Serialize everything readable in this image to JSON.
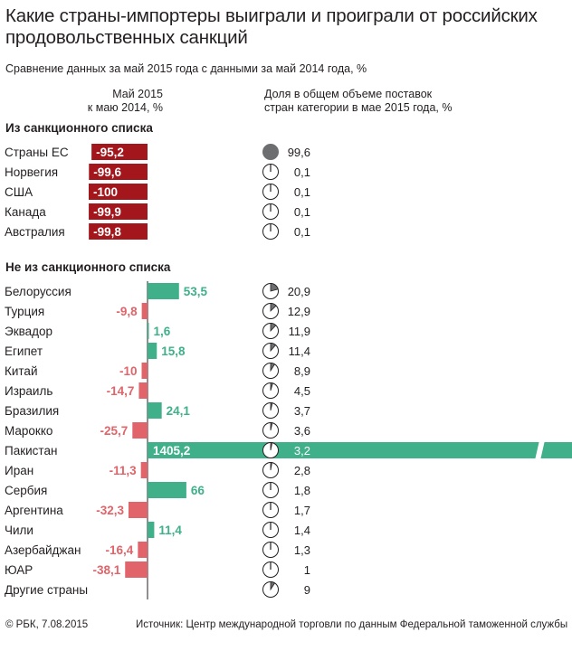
{
  "title": "Какие страны-импортеры выиграли и проиграли от российских продовольственных санкций",
  "subtitle": "Сравнение данных за май 2015 года с данными за май 2014 года, %",
  "footer": {
    "copyright": "© РБК, 7.08.2015",
    "source": "Источник: Центр международной торговли по данным Федеральной таможенной службы"
  },
  "colors": {
    "sanctioned_bar": "#a3161b",
    "positive": "#3fb08a",
    "negative": "#e0646a",
    "pie_fill": "#6d6e70",
    "text": "#231f20"
  },
  "chart_data": {
    "type": "bar",
    "column_headers": {
      "change": "Май 2015\nк маю 2014, %",
      "share": "Доля в общем объеме поставок\nстран категории в мае 2015 года, %"
    },
    "groups": [
      {
        "name": "Из санкционного списка",
        "rows": [
          {
            "country": "Страны ЕС",
            "change": -95.2,
            "change_label": "-95,2",
            "share": 99.6,
            "share_label": "99,6"
          },
          {
            "country": "Норвегия",
            "change": -99.6,
            "change_label": "-99,6",
            "share": 0.1,
            "share_label": "0,1"
          },
          {
            "country": "США",
            "change": -100,
            "change_label": "-100",
            "share": 0.1,
            "share_label": "0,1"
          },
          {
            "country": "Канада",
            "change": -99.9,
            "change_label": "-99,9",
            "share": 0.1,
            "share_label": "0,1"
          },
          {
            "country": "Австралия",
            "change": -99.8,
            "change_label": "-99,8",
            "share": 0.1,
            "share_label": "0,1"
          }
        ]
      },
      {
        "name": "Не из санкционного списка",
        "rows": [
          {
            "country": "Белоруссия",
            "change": 53.5,
            "change_label": "53,5",
            "share": 20.9,
            "share_label": "20,9"
          },
          {
            "country": "Турция",
            "change": -9.8,
            "change_label": "-9,8",
            "share": 12.9,
            "share_label": "12,9"
          },
          {
            "country": "Эквадор",
            "change": 1.6,
            "change_label": "1,6",
            "share": 11.9,
            "share_label": "11,9"
          },
          {
            "country": "Египет",
            "change": 15.8,
            "change_label": "15,8",
            "share": 11.4,
            "share_label": "11,4"
          },
          {
            "country": "Китай",
            "change": -10,
            "change_label": "-10",
            "share": 8.9,
            "share_label": "8,9"
          },
          {
            "country": "Израиль",
            "change": -14.7,
            "change_label": "-14,7",
            "share": 4.5,
            "share_label": "4,5"
          },
          {
            "country": "Бразилия",
            "change": 24.1,
            "change_label": "24,1",
            "share": 3.7,
            "share_label": "3,7"
          },
          {
            "country": "Марокко",
            "change": -25.7,
            "change_label": "-25,7",
            "share": 3.6,
            "share_label": "3,6"
          },
          {
            "country": "Пакистан",
            "change": 1405.2,
            "change_label": "1405,2",
            "share": 3.2,
            "share_label": "3,2",
            "axis_break": true
          },
          {
            "country": "Иран",
            "change": -11.3,
            "change_label": "-11,3",
            "share": 2.8,
            "share_label": "2,8"
          },
          {
            "country": "Сербия",
            "change": 66,
            "change_label": "66",
            "share": 1.8,
            "share_label": "1,8"
          },
          {
            "country": "Аргентина",
            "change": -32.3,
            "change_label": "-32,3",
            "share": 1.7,
            "share_label": "1,7"
          },
          {
            "country": "Чили",
            "change": 11.4,
            "change_label": "11,4",
            "share": 1.4,
            "share_label": "1,4"
          },
          {
            "country": "Азербайджан",
            "change": -16.4,
            "change_label": "-16,4",
            "share": 1.3,
            "share_label": "1,3"
          },
          {
            "country": "ЮАР",
            "change": -38.1,
            "change_label": "-38,1",
            "share": 1,
            "share_label": "1"
          },
          {
            "country": "Другие страны",
            "change": null,
            "change_label": "",
            "share": 9,
            "share_label": "9"
          }
        ]
      }
    ]
  }
}
